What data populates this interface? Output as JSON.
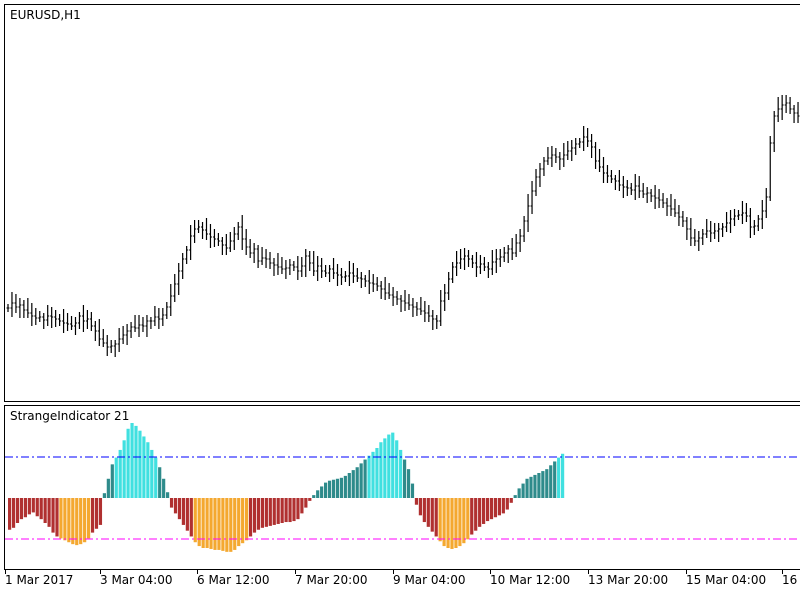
{
  "main_pane": {
    "label": "EURUSD,H1"
  },
  "indicator_pane": {
    "label": "StrangeIndicator 21"
  },
  "colors": {
    "candle": "#000000",
    "upper_level": "#0000ff",
    "lower_level": "#ff00ff",
    "bull_strong": "#40e0e0",
    "bull_weak": "#2e8b8b",
    "bear_strong": "#f4a830",
    "bear_weak": "#b03030"
  },
  "chart_data": [
    {
      "type": "ohlc",
      "title": "EURUSD,H1",
      "x_ticks": [
        "1 Mar 2017",
        "3 Mar 04:00",
        "6 Mar 12:00",
        "7 Mar 20:00",
        "9 Mar 04:00",
        "10 Mar 12:00",
        "13 Mar 20:00",
        "15 Mar 04:00",
        "16"
      ],
      "close": [
        307,
        302,
        306,
        304,
        309,
        312,
        315,
        317,
        316,
        319,
        315,
        316,
        318,
        320,
        322,
        323,
        325,
        322,
        315,
        320,
        318,
        325,
        330,
        338,
        342,
        346,
        345,
        343,
        338,
        334,
        330,
        326,
        327,
        324,
        325,
        320,
        320,
        316,
        318,
        314,
        306,
        295,
        283,
        270,
        258,
        249,
        235,
        228,
        226,
        229,
        233,
        236,
        238,
        240,
        244,
        247,
        240,
        233,
        226,
        238,
        246,
        252,
        248,
        260,
        257,
        258,
        262,
        264,
        266,
        268,
        267,
        264,
        266,
        270,
        265,
        255,
        262,
        270,
        265,
        270,
        272,
        268,
        272,
        274,
        276,
        275,
        272,
        275,
        277,
        278,
        280,
        282,
        283,
        285,
        288,
        292,
        294,
        296,
        298,
        300,
        302,
        304,
        306,
        308,
        310,
        312,
        315,
        318,
        320,
        300,
        292,
        278,
        266,
        262,
        258,
        255,
        258,
        262,
        266,
        263,
        266,
        268,
        261,
        258,
        256,
        252,
        248,
        252,
        242,
        235,
        220,
        205,
        190,
        176,
        168,
        160,
        157,
        154,
        156,
        158,
        154,
        150,
        147,
        143,
        141,
        136,
        140,
        146,
        160,
        166,
        172,
        175,
        178,
        180,
        184,
        186,
        187,
        189,
        185,
        190,
        193,
        192,
        195,
        197,
        199,
        202,
        205,
        208,
        212,
        216,
        220,
        228,
        237,
        240,
        237,
        233,
        230,
        232,
        230,
        228,
        226,
        222,
        218,
        215,
        214,
        212,
        215,
        226,
        225,
        218,
        210,
        196,
        142,
        115,
        108,
        104,
        102,
        108,
        112,
        115,
        116,
        120,
        120,
        114,
        112,
        110,
        108
      ],
      "upper_level": 456,
      "lower_level": 538
    },
    {
      "type": "bar",
      "title": "StrangeIndicator 21",
      "levels": {
        "upper": "dash-dot blue",
        "lower": "dash-dot magenta"
      },
      "values": [
        -33,
        -31,
        -26,
        -22,
        -20,
        -17,
        -15,
        -19,
        -22,
        -26,
        -30,
        -36,
        -40,
        -42,
        -44,
        -46,
        -48,
        -49,
        -48,
        -46,
        -42,
        -36,
        -32,
        -28,
        5,
        20,
        35,
        42,
        50,
        60,
        72,
        78,
        75,
        70,
        64,
        58,
        50,
        42,
        32,
        20,
        6,
        -10,
        -16,
        -22,
        -28,
        -34,
        -40,
        -46,
        -50,
        -52,
        -52,
        -53,
        -54,
        -54,
        -55,
        -56,
        -56,
        -54,
        -50,
        -47,
        -44,
        -40,
        -36,
        -33,
        -31,
        -30,
        -29,
        -28,
        -27,
        -26,
        -25,
        -25,
        -24,
        -22,
        -16,
        -10,
        -3,
        3,
        8,
        12,
        16,
        18,
        19,
        20,
        21,
        23,
        26,
        29,
        32,
        36,
        40,
        44,
        48,
        52,
        58,
        62,
        66,
        68,
        60,
        50,
        40,
        30,
        15,
        -7,
        -18,
        -25,
        -30,
        -35,
        -40,
        -45,
        -50,
        -52,
        -53,
        -52,
        -50,
        -47,
        -43,
        -38,
        -34,
        -30,
        -27,
        -24,
        -22,
        -20,
        -18,
        -16,
        -12,
        -5,
        3,
        10,
        15,
        20,
        22,
        24,
        26,
        28,
        30,
        34,
        38,
        42,
        46
      ]
    }
  ]
}
